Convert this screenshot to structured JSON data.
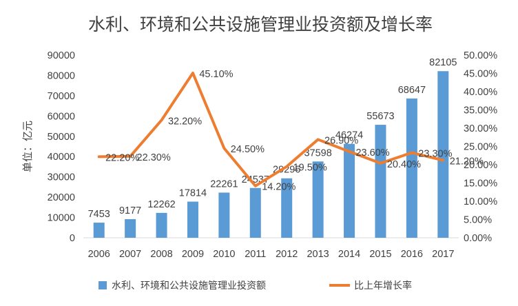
{
  "chart_data": {
    "type": "bar",
    "title": "水利、环境和公共设施管理业投资额及增长率",
    "ylabel": "单位：亿元",
    "categories": [
      "2006",
      "2007",
      "2008",
      "2009",
      "2010",
      "2011",
      "2012",
      "2013",
      "2014",
      "2015",
      "2016",
      "2017"
    ],
    "series": [
      {
        "name": "水利、环境和公共设施管理业投资额",
        "type": "bar",
        "axis": "left",
        "color": "#5B9BD5",
        "values": [
          7453,
          9177,
          12262,
          17814,
          22261,
          24537,
          29296,
          37598,
          46274,
          55673,
          68647,
          82105
        ],
        "labels": [
          "7453",
          "9177",
          "12262",
          "17814",
          "22261",
          "24537",
          "29296",
          "37598",
          "46274",
          "55673",
          "68647",
          "82105"
        ]
      },
      {
        "name": "比上年增长率",
        "type": "line",
        "axis": "right",
        "color": "#ED7D31",
        "values": [
          22.2,
          22.3,
          32.2,
          45.1,
          24.5,
          14.2,
          19.5,
          26.9,
          23.6,
          20.4,
          23.3,
          21.2
        ],
        "labels": [
          "22.20%",
          "22.30%",
          "32.20%",
          "45.10%",
          "24.50%",
          "14.20%",
          "19.50%",
          "26.90%",
          "23.60%",
          "20.40%",
          "23.30%",
          "21.20%"
        ]
      }
    ],
    "y_left": {
      "min": 0,
      "max": 90000,
      "step": 10000,
      "ticks": [
        "0",
        "10000",
        "20000",
        "30000",
        "40000",
        "50000",
        "60000",
        "70000",
        "80000",
        "90000"
      ]
    },
    "y_right": {
      "min": 0,
      "max": 50,
      "step": 5,
      "ticks": [
        "0.00%",
        "5.00%",
        "10.00%",
        "15.00%",
        "20.00%",
        "25.00%",
        "30.00%",
        "35.00%",
        "40.00%",
        "45.00%",
        "50.00%"
      ]
    },
    "grid": false,
    "legend": "bottom"
  }
}
